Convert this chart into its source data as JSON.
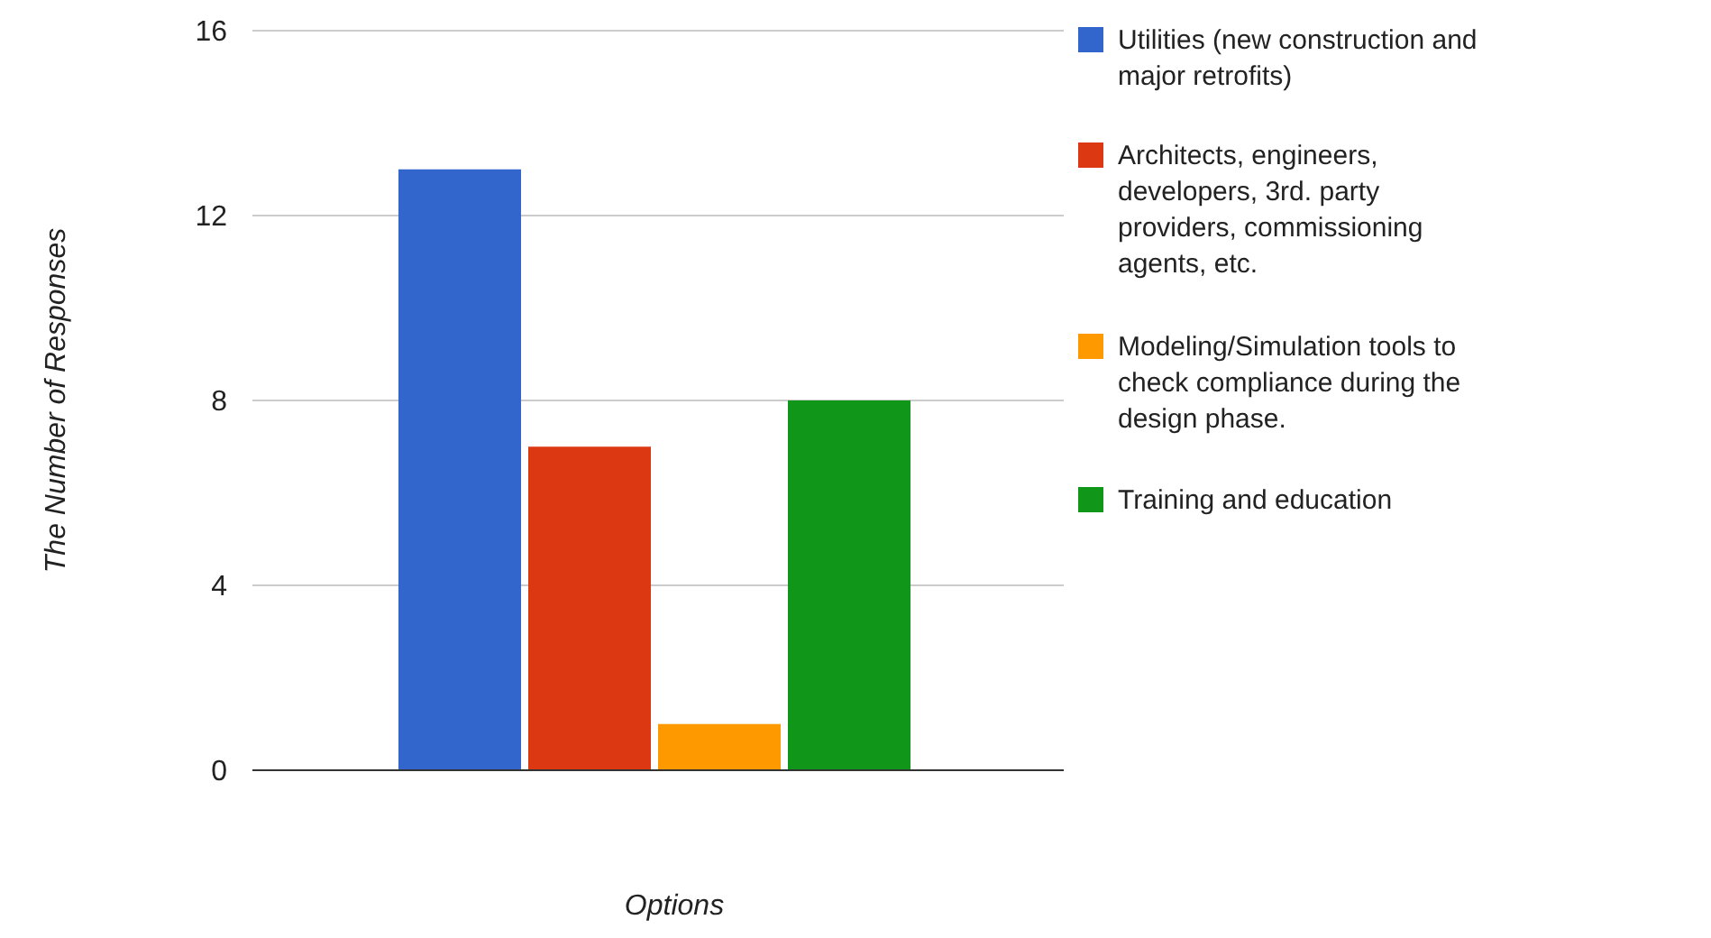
{
  "chart_data": {
    "type": "bar",
    "xlabel": "Options",
    "ylabel": "The Number of Responses",
    "categories": [
      null
    ],
    "series": [
      {
        "name": "Utilities (new construction and major retrofits)",
        "color": "#3366cc",
        "values": [
          13
        ]
      },
      {
        "name": "Architects, engineers, developers, 3rd. party providers, commissioning agents, etc.",
        "color": "#dc3912",
        "values": [
          7
        ]
      },
      {
        "name": "Modeling/Simulation tools to check compliance during the design phase.",
        "color": "#ff9900",
        "values": [
          1
        ]
      },
      {
        "name": "Training and education",
        "color": "#109618",
        "values": [
          8
        ]
      }
    ],
    "ylim": [
      0,
      16
    ],
    "yticks": [
      0,
      4,
      8,
      12,
      16
    ],
    "grid": "y",
    "legend": "right"
  }
}
